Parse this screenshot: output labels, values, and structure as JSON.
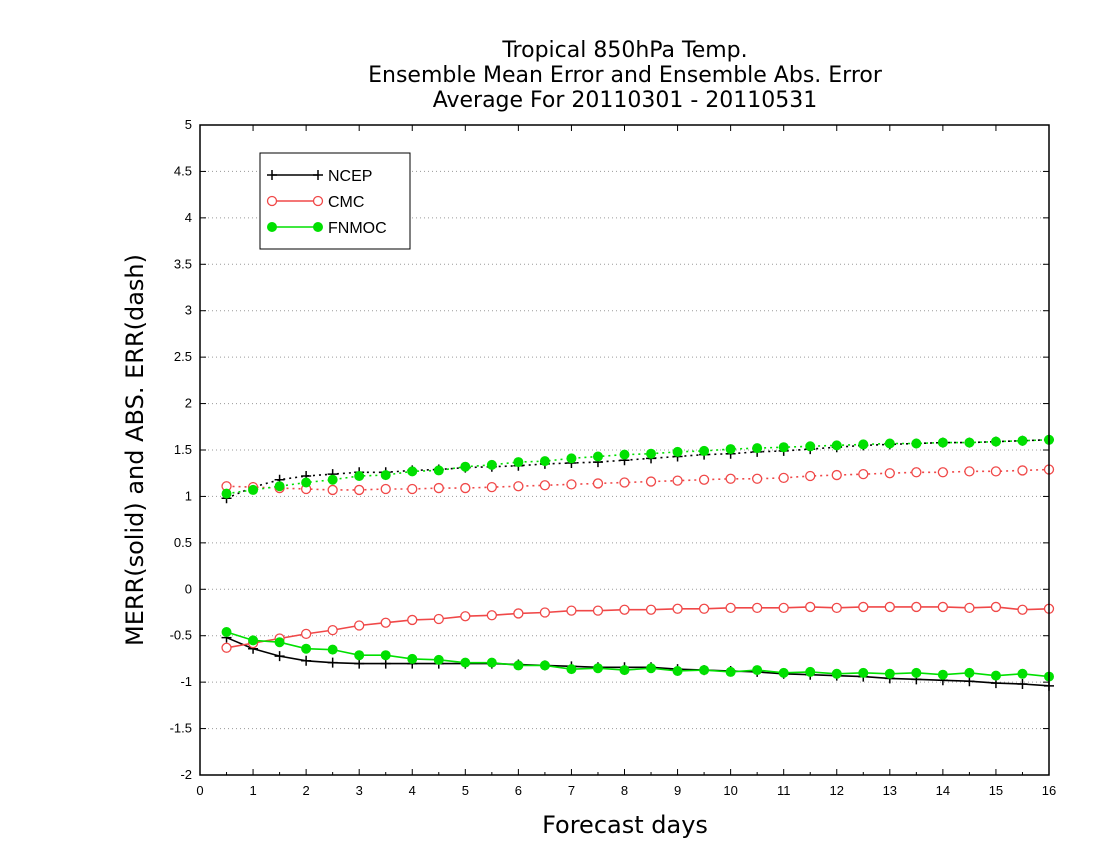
{
  "chart_data": {
    "type": "line",
    "title": [
      "Tropical 850hPa Temp.",
      "Ensemble Mean Error and Ensemble Abs. Error",
      "Average For 20110301 - 20110531"
    ],
    "xlabel": "Forecast days",
    "ylabel": "MERR(solid) and ABS. ERR(dash)",
    "xlim": [
      0,
      16
    ],
    "ylim": [
      -2,
      5
    ],
    "xticks": [
      "0",
      "1",
      "2",
      "3",
      "4",
      "5",
      "6",
      "7",
      "8",
      "9",
      "10",
      "11",
      "12",
      "13",
      "14",
      "15",
      "16"
    ],
    "yticks": [
      "5",
      "4.5",
      "4",
      "3.5",
      "3",
      "2.5",
      "2",
      "1.5",
      "1",
      "0.5",
      "0",
      "-0.5",
      "-1",
      "-1.5",
      "-2"
    ],
    "grid": true,
    "legend_position": "top-left",
    "x": [
      0.5,
      1,
      1.5,
      2,
      2.5,
      3,
      3.5,
      4,
      4.5,
      5,
      5.5,
      6,
      6.5,
      7,
      7.5,
      8,
      8.5,
      9,
      9.5,
      10,
      10.5,
      11,
      11.5,
      12,
      12.5,
      13,
      13.5,
      14,
      14.5,
      15,
      15.5,
      16
    ],
    "series": [
      {
        "name": "NCEP",
        "color": "#000000",
        "marker": "plus",
        "mean_error": [
          -0.52,
          -0.64,
          -0.72,
          -0.77,
          -0.79,
          -0.8,
          -0.8,
          -0.8,
          -0.8,
          -0.8,
          -0.8,
          -0.81,
          -0.82,
          -0.83,
          -0.84,
          -0.84,
          -0.84,
          -0.86,
          -0.87,
          -0.88,
          -0.89,
          -0.91,
          -0.92,
          -0.93,
          -0.94,
          -0.96,
          -0.97,
          -0.98,
          -0.99,
          -1.01,
          -1.02,
          -1.04
        ],
        "abs_error": [
          0.98,
          1.1,
          1.18,
          1.22,
          1.24,
          1.26,
          1.26,
          1.28,
          1.29,
          1.31,
          1.32,
          1.33,
          1.35,
          1.36,
          1.37,
          1.39,
          1.41,
          1.43,
          1.45,
          1.46,
          1.48,
          1.49,
          1.51,
          1.53,
          1.55,
          1.56,
          1.57,
          1.58,
          1.58,
          1.59,
          1.6,
          1.61
        ]
      },
      {
        "name": "CMC",
        "color": "#f04848",
        "marker": "open-circle",
        "mean_error": [
          -0.63,
          -0.58,
          -0.53,
          -0.48,
          -0.44,
          -0.39,
          -0.36,
          -0.33,
          -0.32,
          -0.29,
          -0.28,
          -0.26,
          -0.25,
          -0.23,
          -0.23,
          -0.22,
          -0.22,
          -0.21,
          -0.21,
          -0.2,
          -0.2,
          -0.2,
          -0.19,
          -0.2,
          -0.19,
          -0.19,
          -0.19,
          -0.19,
          -0.2,
          -0.19,
          -0.22,
          -0.21
        ],
        "abs_error": [
          1.11,
          1.1,
          1.09,
          1.08,
          1.07,
          1.07,
          1.08,
          1.08,
          1.09,
          1.09,
          1.1,
          1.11,
          1.12,
          1.13,
          1.14,
          1.15,
          1.16,
          1.17,
          1.18,
          1.19,
          1.19,
          1.2,
          1.22,
          1.23,
          1.24,
          1.25,
          1.26,
          1.26,
          1.27,
          1.27,
          1.28,
          1.29
        ]
      },
      {
        "name": "FNMOC",
        "color": "#00e000",
        "marker": "filled-circle",
        "mean_error": [
          -0.46,
          -0.55,
          -0.57,
          -0.64,
          -0.65,
          -0.71,
          -0.71,
          -0.75,
          -0.76,
          -0.79,
          -0.79,
          -0.82,
          -0.82,
          -0.86,
          -0.85,
          -0.87,
          -0.85,
          -0.88,
          -0.87,
          -0.89,
          -0.87,
          -0.9,
          -0.89,
          -0.91,
          -0.9,
          -0.91,
          -0.9,
          -0.92,
          -0.9,
          -0.93,
          -0.91,
          -0.94
        ],
        "abs_error": [
          1.03,
          1.07,
          1.11,
          1.15,
          1.18,
          1.22,
          1.23,
          1.27,
          1.28,
          1.32,
          1.34,
          1.37,
          1.38,
          1.41,
          1.43,
          1.45,
          1.46,
          1.48,
          1.49,
          1.51,
          1.52,
          1.53,
          1.54,
          1.55,
          1.56,
          1.57,
          1.57,
          1.58,
          1.58,
          1.59,
          1.6,
          1.61
        ]
      }
    ]
  }
}
